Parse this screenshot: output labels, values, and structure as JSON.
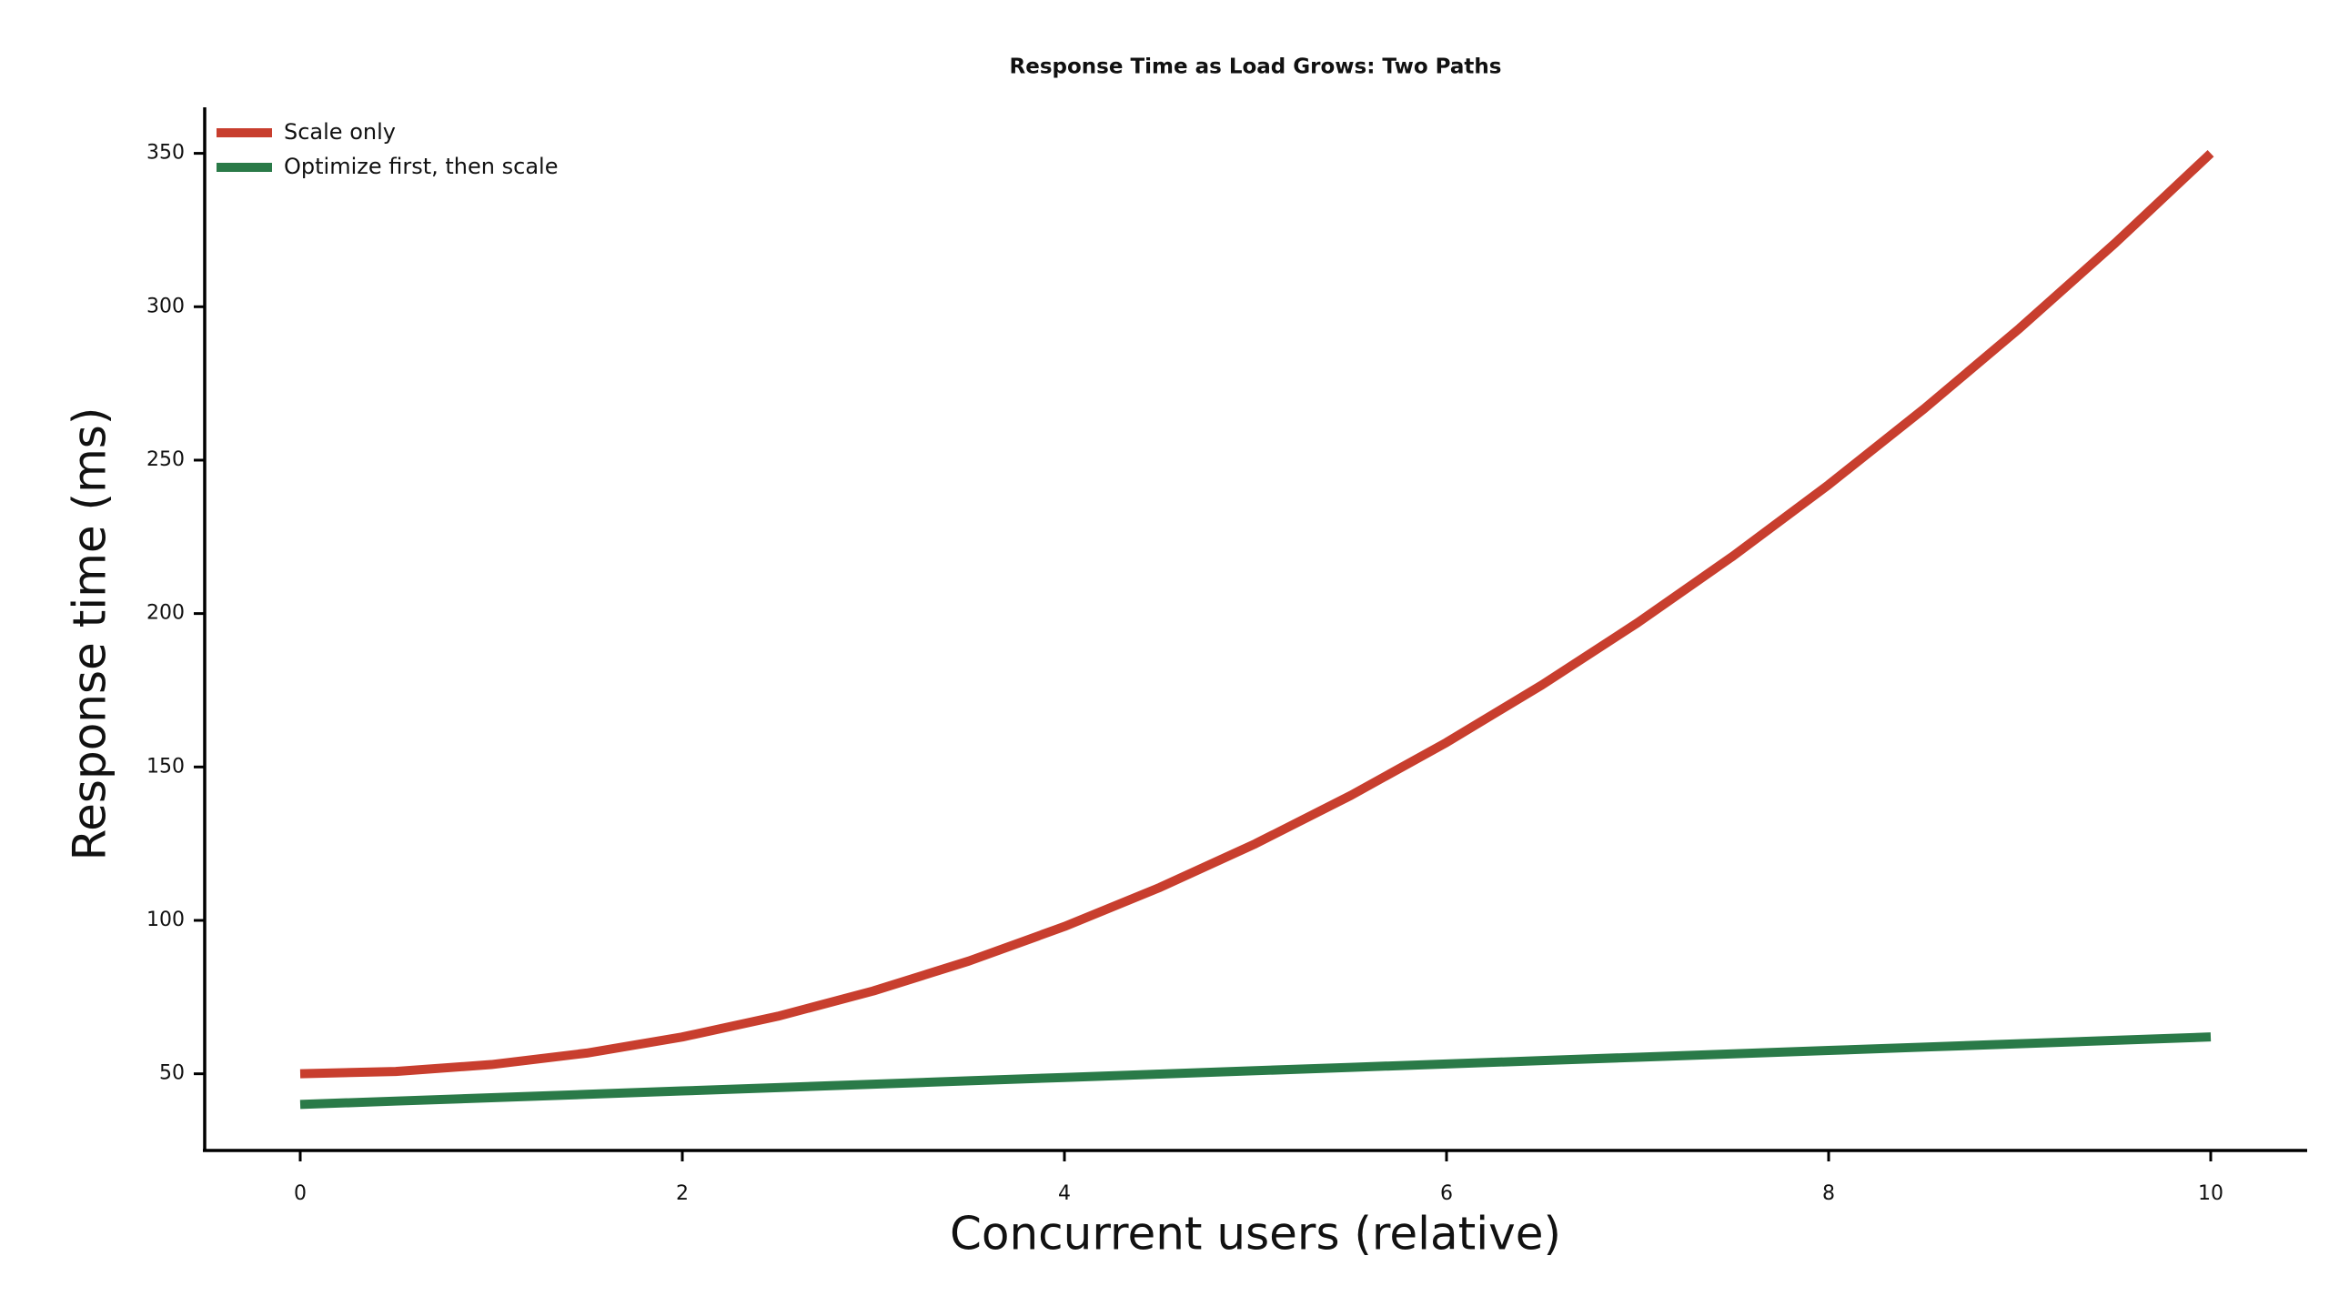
{
  "chart_data": {
    "type": "line",
    "title": "Response Time as Load Grows: Two Paths",
    "x_label": "Concurrent users (relative)",
    "y_label": "Response time (ms)",
    "x": [
      0,
      0.5,
      1,
      1.5,
      2,
      2.5,
      3,
      3.5,
      4,
      4.5,
      5,
      5.5,
      6,
      6.5,
      7,
      7.5,
      8,
      8.5,
      9,
      9.5,
      10
    ],
    "series": [
      {
        "name": "Scale only",
        "color": "#c83e2e",
        "values": [
          50,
          50.75,
          53,
          56.75,
          62,
          68.75,
          77,
          86.75,
          98,
          110.75,
          125,
          140.75,
          158,
          176.75,
          197,
          218.75,
          242,
          266.75,
          293,
          320.75,
          350
        ]
      },
      {
        "name": "Optimize first, then scale",
        "color": "#2a7a48",
        "values": [
          40,
          41.1,
          42.2,
          43.3,
          44.4,
          45.5,
          46.6,
          47.7,
          48.8,
          49.9,
          51,
          52.1,
          53.2,
          54.3,
          55.4,
          56.5,
          57.6,
          58.7,
          59.8,
          60.9,
          62
        ]
      }
    ],
    "xlim": [
      -0.5,
      10.5
    ],
    "ylim": [
      25,
      365
    ],
    "xticks": [
      0,
      2,
      4,
      6,
      8,
      10
    ],
    "yticks": [
      50,
      100,
      150,
      200,
      250,
      300,
      350
    ],
    "legend": "upper left",
    "grid": false
  }
}
